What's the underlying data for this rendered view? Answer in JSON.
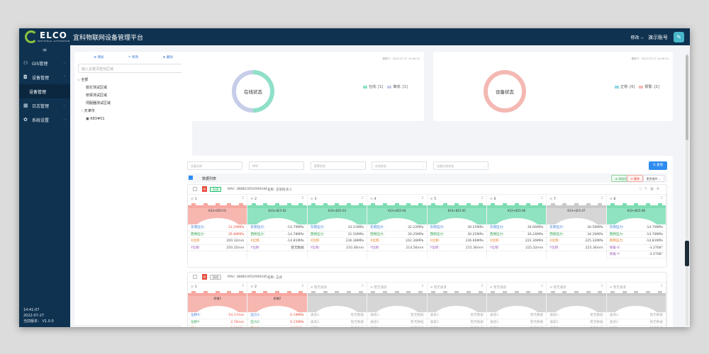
{
  "header": {
    "logo": "ELCO",
    "logo_sub": "INDUSTRIAL AUTOMATION",
    "title": "宜科物联网设备管理平台",
    "user_menu": "修改",
    "account": "演示账号",
    "avatar": "✎"
  },
  "sidebar": {
    "toggle": "≡",
    "items": [
      {
        "label": "GIS管理",
        "icon": "person-icon",
        "glyph": "⚇"
      },
      {
        "label": "设备管理",
        "icon": "camera-icon",
        "glyph": "◘"
      },
      {
        "label": "设备管理",
        "icon": "",
        "glyph": ""
      },
      {
        "label": "日志管理",
        "icon": "calendar-icon",
        "glyph": "▦"
      },
      {
        "label": "系统设置",
        "icon": "gear-icon",
        "glyph": "✿"
      }
    ],
    "time": "14:41:07",
    "date": "2022-07-27",
    "version": "当前版本： V1.0.0"
  },
  "tree": {
    "actions": [
      "⊕ 增加",
      "✎ 修改",
      "⊗ 删除"
    ],
    "search_placeholder": "输入关键词查找区域",
    "nodes": [
      "全部",
      "桩钉测试区域",
      "桥梁测试区域",
      "伺服器测试区域",
      "天津市",
      "K83#01"
    ]
  },
  "status_online": {
    "title": "在线状态",
    "updated": "更新于：2022-07-27 14:40:24",
    "legend": [
      {
        "label": "在线",
        "count": "[1]",
        "color": "#8fe0c8"
      },
      {
        "label": "离线",
        "count": "[1]",
        "color": "#c6cde8"
      }
    ],
    "online": 1,
    "offline": 1
  },
  "status_device": {
    "title": "设备状态",
    "updated": "更新于：2022-07-27 14:40:24",
    "legend": [
      {
        "label": "正常",
        "count": "[0]",
        "color": "#8fd8e8"
      },
      {
        "label": "报警",
        "count": "[2]",
        "color": "#f4b8b3"
      }
    ],
    "normal": 0,
    "alarm": 2
  },
  "filters": {
    "fields": [
      "设备名称",
      "MAC",
      "报警状态",
      "在线状态",
      "设备在线状态"
    ],
    "search": "Q 查询"
  },
  "list": {
    "title": "数据列表",
    "add": "添加设备",
    "del": "删除",
    "more": "更多操作"
  },
  "device1": {
    "status": "在线",
    "mac": "MAC: 888810054969184",
    "name": "名称: 支架阿决-1",
    "sensors": [
      {
        "n": "1",
        "code": "K33+825-01",
        "color": "red",
        "m": [
          [
            "东侧压力:",
            "31.29MPa",
            "c-blue",
            "c-red"
          ],
          [
            "西侧压力:",
            "35.68MPa",
            "c-green",
            "c-red"
          ],
          [
            "X位移:",
            "200.32mm",
            "c-orange",
            "c-dark"
          ],
          [
            "Y位移:",
            "250.25mm",
            "c-purple",
            "c-dark"
          ]
        ]
      },
      {
        "n": "2",
        "code": "K33+825-02",
        "color": "green",
        "m": [
          [
            "东侧压力:",
            "-14.79MPa",
            "c-blue",
            "c-dark"
          ],
          [
            "西侧压力:",
            "-14.78MPa",
            "c-green",
            "c-dark"
          ],
          [
            "X位移:",
            "-14.81MPa",
            "c-orange",
            "c-dark"
          ],
          [
            "Y位移:",
            "暂无数据",
            "c-purple",
            "c-dark"
          ]
        ]
      },
      {
        "n": "3",
        "code": "K33+825-03",
        "color": "green",
        "m": [
          [
            "东侧压力:",
            "33.21MPa",
            "c-blue",
            "c-dark"
          ],
          [
            "西侧压力:",
            "31.50MPa",
            "c-green",
            "c-dark"
          ],
          [
            "X位移:",
            "236.38MPa",
            "c-orange",
            "c-dark"
          ],
          [
            "Y位移:",
            "210.36mm",
            "c-purple",
            "c-dark"
          ]
        ]
      },
      {
        "n": "4",
        "code": "K33+825-04",
        "color": "green",
        "m": [
          [
            "东侧压力:",
            "32.22MPa",
            "c-blue",
            "c-dark"
          ],
          [
            "西侧压力:",
            "30.25MPa",
            "c-green",
            "c-dark"
          ],
          [
            "X位移:",
            "242.36MPa",
            "c-orange",
            "c-dark"
          ],
          [
            "Y位移:",
            "214.56mm",
            "c-purple",
            "c-dark"
          ]
        ]
      },
      {
        "n": "5",
        "code": "K33+825-05",
        "color": "green",
        "m": [
          [
            "东侧压力:",
            "30.25MPa",
            "c-blue",
            "c-dark"
          ],
          [
            "西侧压力:",
            "30.25MPa",
            "c-green",
            "c-dark"
          ],
          [
            "X位移:",
            "236.66MPa",
            "c-orange",
            "c-dark"
          ],
          [
            "Y位移:",
            "215.36mm",
            "c-purple",
            "c-dark"
          ]
        ]
      },
      {
        "n": "6",
        "code": "K33+825-06",
        "color": "green",
        "m": [
          [
            "东侧压力:",
            "30.66MPa",
            "c-blue",
            "c-dark"
          ],
          [
            "西侧压力:",
            "30.24MPa",
            "c-green",
            "c-dark"
          ],
          [
            "X位移:",
            "222.36MPa",
            "c-orange",
            "c-dark"
          ],
          [
            "Y位移:",
            "225.32mm",
            "c-purple",
            "c-dark"
          ]
        ]
      },
      {
        "n": "7",
        "code": "K33+825-07",
        "color": "gray",
        "m": [
          [
            "东侧压力:",
            "30.56MPa",
            "c-blue",
            "c-dark"
          ],
          [
            "西侧压力:",
            "34.26MPa",
            "c-green",
            "c-dark"
          ],
          [
            "X位移:",
            "225.32MPa",
            "c-orange",
            "c-dark"
          ],
          [
            "Y位移:",
            "225.36mm",
            "c-purple",
            "c-dark"
          ]
        ]
      },
      {
        "n": "8",
        "code": "K33+825-08",
        "color": "green",
        "m": [
          [
            "东侧压力:",
            "-14.79MPa",
            "c-blue",
            "c-dark"
          ],
          [
            "西侧压力:",
            "-14.78MPa",
            "c-green",
            "c-dark"
          ],
          [
            "南侧压力:",
            "-14.81MPa",
            "c-orange",
            "c-dark"
          ],
          [
            "倾角-X:",
            "-3.2768°",
            "c-purple",
            "c-dark"
          ],
          [
            "倾角-Y:",
            "-3.2768°",
            "c-purple",
            "c-dark"
          ]
        ]
      }
    ]
  },
  "device2": {
    "status": "离线",
    "mac": "MAC: 888810054969185",
    "name": "名称: 正式",
    "sensors": [
      {
        "n": "1",
        "code": "桥墩1",
        "color": "red",
        "m": [
          [
            "位移X:",
            "54.17mm",
            "c-blue",
            "c-red"
          ],
          [
            "位移Y:",
            "2.70mm",
            "c-green",
            "c-red"
          ],
          [
            "压力:",
            "0.13MPa",
            "c-orange",
            "c-red"
          ],
          [
            "倾角-X:",
            "-0.48°",
            "c-purple",
            "c-red"
          ]
        ]
      },
      {
        "n": "2",
        "code": "桥墩2",
        "color": "red",
        "m": [
          [
            "压力1:",
            "0.19MPa",
            "c-blue",
            "c-red"
          ],
          [
            "压力2:",
            "0.15MPa",
            "c-green",
            "c-red"
          ],
          [
            "压力3:",
            "0.13MPa",
            "c-orange",
            "c-red"
          ],
          [
            "角度-X:",
            "3.85°",
            "c-purple",
            "c-red"
          ]
        ]
      },
      {
        "n": "⊖ 暂无通道",
        "code": "",
        "color": "gray",
        "m": [
          [
            "通道1:",
            "暂无数据",
            "c-gray",
            "c-gray"
          ],
          [
            "通道2:",
            "暂无数据",
            "c-gray",
            "c-gray"
          ],
          [
            "通道3:",
            "暂无数据",
            "c-gray",
            "c-gray"
          ],
          [
            "通道4:",
            "暂无数据",
            "c-gray",
            "c-gray"
          ]
        ]
      },
      {
        "n": "⊖ 暂无通道",
        "code": "",
        "color": "gray",
        "m": [
          [
            "通道1:",
            "暂无数据",
            "c-gray",
            "c-gray"
          ],
          [
            "通道2:",
            "暂无数据",
            "c-gray",
            "c-gray"
          ],
          [
            "通道3:",
            "暂无数据",
            "c-gray",
            "c-gray"
          ],
          [
            "通道4:",
            "暂无数据",
            "c-gray",
            "c-gray"
          ]
        ]
      },
      {
        "n": "⊖ 暂无通道",
        "code": "",
        "color": "gray",
        "m": [
          [
            "通道1:",
            "暂无数据",
            "c-gray",
            "c-gray"
          ],
          [
            "通道2:",
            "暂无数据",
            "c-gray",
            "c-gray"
          ],
          [
            "通道3:",
            "暂无数据",
            "c-gray",
            "c-gray"
          ],
          [
            "通道4:",
            "暂无数据",
            "c-gray",
            "c-gray"
          ]
        ]
      },
      {
        "n": "⊖ 暂无通道",
        "code": "",
        "color": "gray",
        "m": [
          [
            "通道1:",
            "暂无数据",
            "c-gray",
            "c-gray"
          ],
          [
            "通道2:",
            "暂无数据",
            "c-gray",
            "c-gray"
          ],
          [
            "通道3:",
            "暂无数据",
            "c-gray",
            "c-gray"
          ],
          [
            "通道4:",
            "暂无数据",
            "c-gray",
            "c-gray"
          ]
        ]
      },
      {
        "n": "⊖ 暂无通道",
        "code": "",
        "color": "gray",
        "m": [
          [
            "通道1:",
            "暂无数据",
            "c-gray",
            "c-gray"
          ],
          [
            "通道2:",
            "暂无数据",
            "c-gray",
            "c-gray"
          ],
          [
            "通道3:",
            "暂无数据",
            "c-gray",
            "c-gray"
          ],
          [
            "通道4:",
            "暂无数据",
            "c-gray",
            "c-gray"
          ]
        ]
      },
      {
        "n": "⊖ 暂无通道",
        "code": "",
        "color": "gray",
        "m": [
          [
            "通道1:",
            "暂无数据",
            "c-gray",
            "c-gray"
          ],
          [
            "通道2:",
            "暂无数据",
            "c-gray",
            "c-gray"
          ],
          [
            "通道3:",
            "暂无数据",
            "c-gray",
            "c-gray"
          ],
          [
            "通道4:",
            "暂无数据",
            "c-gray",
            "c-gray"
          ]
        ]
      }
    ]
  },
  "colors": {
    "red": [
      "#f6a7a0",
      "#f7b7b1"
    ],
    "green": [
      "#7ddcb3",
      "#8fe3c0"
    ],
    "gray": [
      "#c9c9c9",
      "#d6d6d6"
    ]
  }
}
